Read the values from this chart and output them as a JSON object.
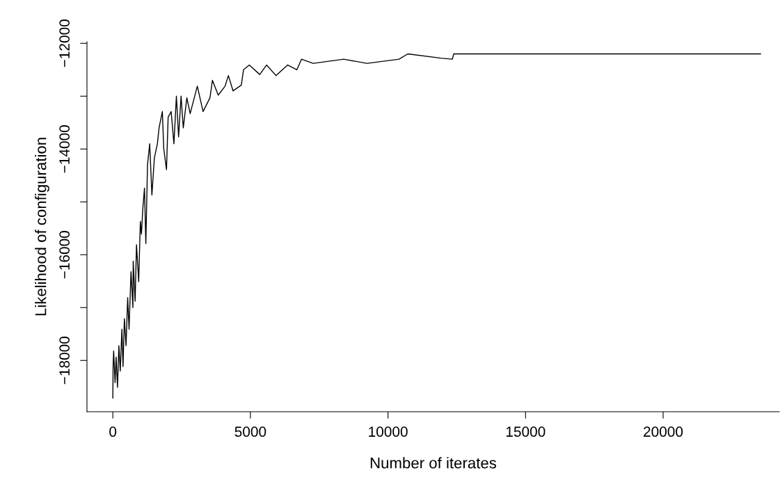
{
  "chart_data": {
    "type": "line",
    "xlabel": "Number of iterates",
    "ylabel": "Likelihood of configuration",
    "xlim": [
      -940,
      24220
    ],
    "ylim": [
      -18970,
      -11970
    ],
    "xticks": [
      0,
      5000,
      10000,
      15000,
      20000
    ],
    "yticks": [
      -12000,
      {
        "value": -13000,
        "label": null
      },
      -14000,
      {
        "value": -15000,
        "label": null
      },
      -16000,
      {
        "value": -17000,
        "label": null
      },
      -18000
    ],
    "x": [
      0,
      10,
      30,
      80,
      120,
      170,
      220,
      270,
      330,
      370,
      420,
      480,
      540,
      590,
      660,
      730,
      740,
      810,
      860,
      940,
      1000,
      1040,
      1090,
      1150,
      1200,
      1260,
      1340,
      1420,
      1510,
      1620,
      1680,
      1800,
      1850,
      1950,
      2010,
      2120,
      2220,
      2310,
      2390,
      2480,
      2560,
      2690,
      2810,
      3070,
      3280,
      3530,
      3620,
      3830,
      4080,
      4200,
      4370,
      4670,
      4750,
      4960,
      5340,
      5590,
      5930,
      6350,
      6690,
      6860,
      7280,
      8390,
      9240,
      10400,
      10720,
      11930,
      12340,
      12390,
      23540
    ],
    "series": [
      {
        "color": "#000000",
        "values": [
          -18710,
          -18115,
          -17820,
          -18420,
          -17935,
          -18510,
          -17720,
          -18200,
          -17410,
          -18115,
          -17210,
          -17720,
          -16810,
          -17410,
          -16320,
          -17000,
          -16120,
          -16880,
          -15810,
          -16510,
          -15370,
          -15610,
          -15130,
          -14740,
          -15790,
          -14300,
          -13900,
          -14870,
          -14170,
          -13900,
          -13600,
          -13290,
          -13990,
          -14390,
          -13400,
          -13290,
          -13900,
          -13000,
          -13770,
          -13000,
          -13600,
          -13030,
          -13330,
          -12810,
          -13290,
          -13030,
          -12700,
          -12980,
          -12810,
          -12610,
          -12900,
          -12790,
          -12500,
          -12410,
          -12590,
          -12410,
          -12610,
          -12410,
          -12500,
          -12300,
          -12380,
          -12300,
          -12380,
          -12300,
          -12200,
          -12280,
          -12300,
          -12200,
          -12200
        ]
      }
    ]
  }
}
